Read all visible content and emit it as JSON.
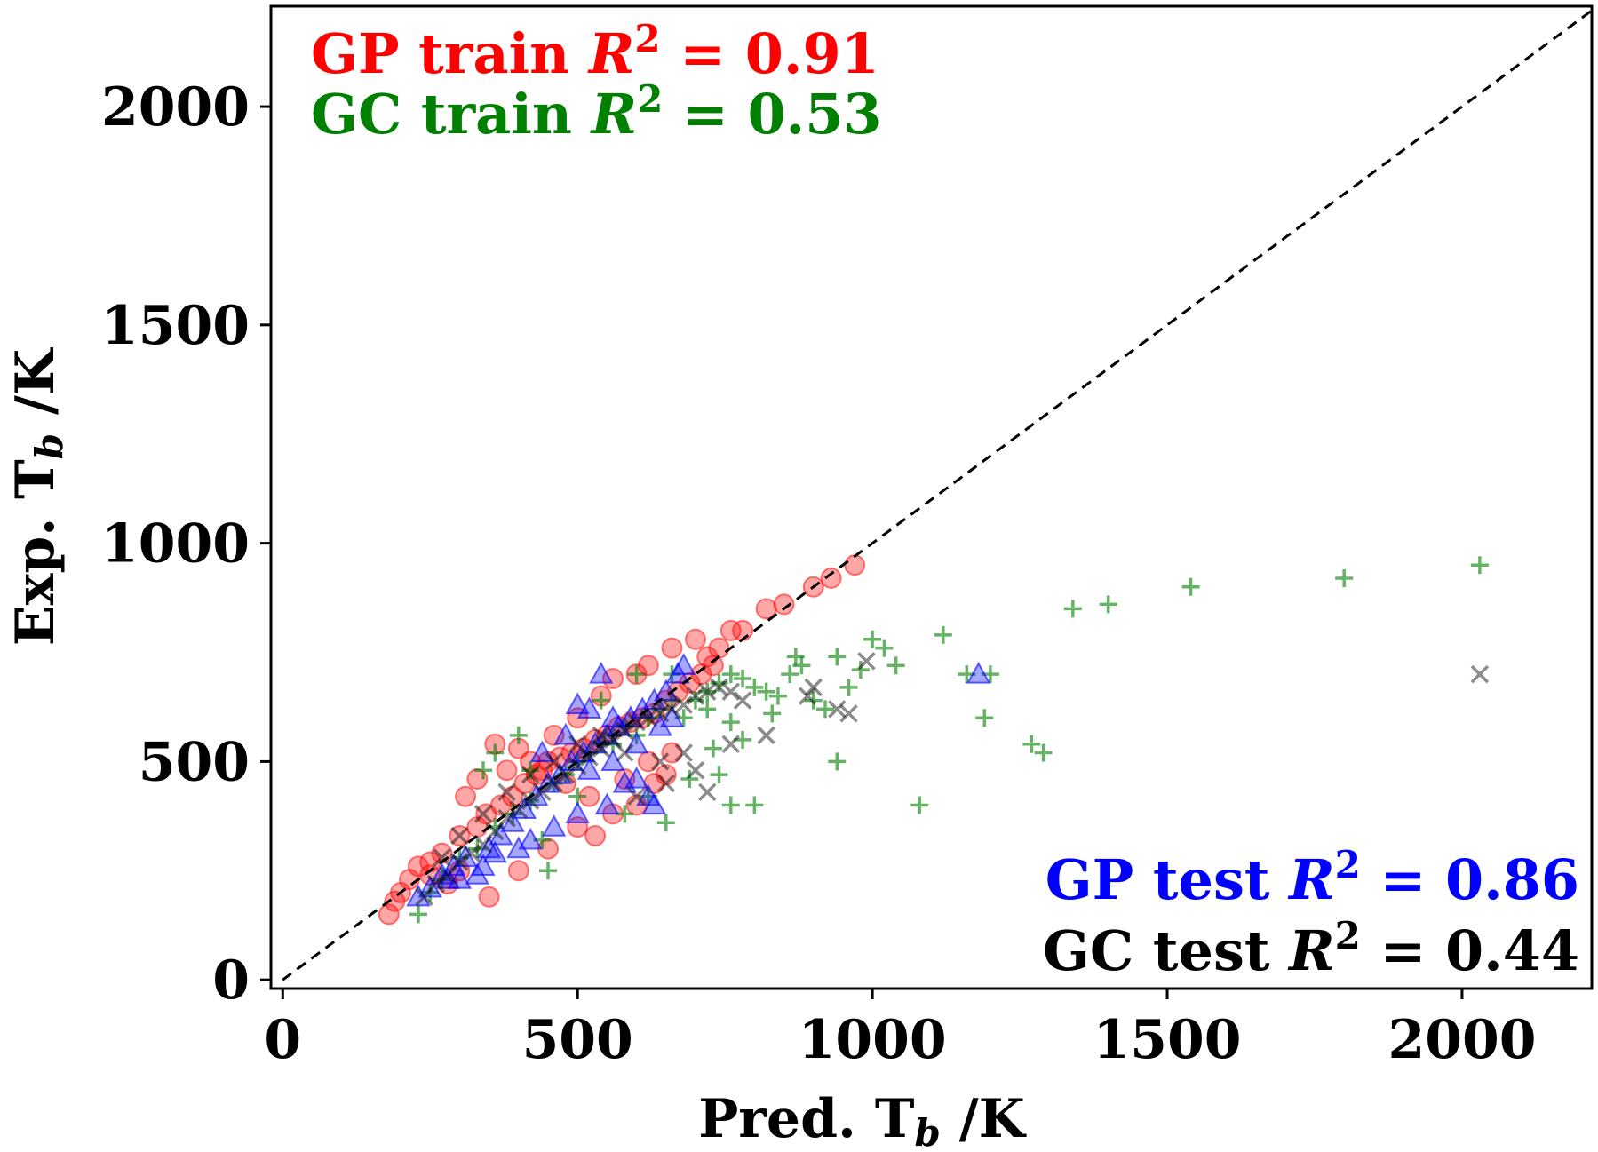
{
  "chart_data": {
    "type": "scatter",
    "xlabel": "Pred. T",
    "xlabel_sub": "b",
    "xlabel_unit": " /K",
    "ylabel": "Exp. T",
    "ylabel_sub": "b",
    "ylabel_unit": " /K",
    "xlim": [
      -20,
      2220
    ],
    "ylim": [
      -20,
      2230
    ],
    "x_ticks": [
      "0",
      "500",
      "1000",
      "1500",
      "2000"
    ],
    "y_ticks": [
      "0",
      "500",
      "1000",
      "1500",
      "2000"
    ],
    "grid": false,
    "legend": "none",
    "annotations": [
      {
        "text": "GP train",
        "r2": "= 0.91",
        "color": "#ff0000",
        "position": "top-left"
      },
      {
        "text": "GC train",
        "r2": "= 0.53",
        "color": "#008000",
        "position": "top-left"
      },
      {
        "text": "GP test",
        "r2": "= 0.86",
        "color": "#0000ff",
        "position": "bottom-right"
      },
      {
        "text": "GC test",
        "r2": "= 0.44",
        "color": "#000000",
        "position": "bottom-right"
      }
    ],
    "r2_label": "R",
    "r2_sup": "2",
    "reference_line": {
      "from": [
        0,
        0
      ],
      "to": [
        2220,
        2220
      ],
      "style": "dashed",
      "color": "#000000"
    },
    "series": [
      {
        "key": "gp_train",
        "marker": "circle",
        "color": "#ff0000",
        "points": [
          [
            180,
            150
          ],
          [
            190,
            180
          ],
          [
            200,
            200
          ],
          [
            215,
            230
          ],
          [
            230,
            260
          ],
          [
            250,
            270
          ],
          [
            270,
            290
          ],
          [
            300,
            330
          ],
          [
            330,
            350
          ],
          [
            345,
            380
          ],
          [
            370,
            400
          ],
          [
            390,
            420
          ],
          [
            410,
            450
          ],
          [
            430,
            470
          ],
          [
            450,
            500
          ],
          [
            470,
            510
          ],
          [
            490,
            520
          ],
          [
            510,
            530
          ],
          [
            530,
            550
          ],
          [
            550,
            560
          ],
          [
            570,
            580
          ],
          [
            590,
            590
          ],
          [
            610,
            600
          ],
          [
            630,
            610
          ],
          [
            650,
            640
          ],
          [
            670,
            660
          ],
          [
            690,
            680
          ],
          [
            710,
            700
          ],
          [
            730,
            720
          ],
          [
            740,
            760
          ],
          [
            760,
            800
          ],
          [
            780,
            800
          ],
          [
            820,
            850
          ],
          [
            850,
            860
          ],
          [
            900,
            900
          ],
          [
            930,
            920
          ],
          [
            970,
            950
          ],
          [
            350,
            190
          ],
          [
            400,
            250
          ],
          [
            450,
            300
          ],
          [
            500,
            350
          ],
          [
            530,
            330
          ],
          [
            560,
            380
          ],
          [
            600,
            400
          ],
          [
            630,
            450
          ],
          [
            650,
            470
          ],
          [
            300,
            250
          ],
          [
            280,
            220
          ],
          [
            250,
            240
          ],
          [
            360,
            540
          ],
          [
            400,
            530
          ],
          [
            460,
            560
          ],
          [
            500,
            600
          ],
          [
            540,
            650
          ],
          [
            560,
            690
          ],
          [
            600,
            700
          ],
          [
            620,
            720
          ],
          [
            660,
            760
          ],
          [
            700,
            780
          ],
          [
            720,
            740
          ],
          [
            330,
            460
          ],
          [
            310,
            420
          ],
          [
            380,
            480
          ],
          [
            420,
            500
          ],
          [
            440,
            480
          ],
          [
            480,
            450
          ],
          [
            520,
            420
          ],
          [
            580,
            460
          ],
          [
            620,
            500
          ],
          [
            660,
            520
          ]
        ]
      },
      {
        "key": "gc_train",
        "marker": "plus",
        "color": "#008000",
        "points": [
          [
            230,
            150
          ],
          [
            250,
            200
          ],
          [
            270,
            230
          ],
          [
            300,
            280
          ],
          [
            330,
            300
          ],
          [
            360,
            350
          ],
          [
            390,
            380
          ],
          [
            420,
            410
          ],
          [
            450,
            250
          ],
          [
            460,
            450
          ],
          [
            480,
            470
          ],
          [
            500,
            500
          ],
          [
            520,
            520
          ],
          [
            540,
            540
          ],
          [
            560,
            560
          ],
          [
            580,
            580
          ],
          [
            600,
            560
          ],
          [
            620,
            600
          ],
          [
            640,
            620
          ],
          [
            660,
            640
          ],
          [
            680,
            600
          ],
          [
            700,
            640
          ],
          [
            720,
            660
          ],
          [
            740,
            680
          ],
          [
            760,
            700
          ],
          [
            780,
            690
          ],
          [
            800,
            670
          ],
          [
            820,
            660
          ],
          [
            840,
            650
          ],
          [
            860,
            700
          ],
          [
            880,
            720
          ],
          [
            900,
            640
          ],
          [
            920,
            620
          ],
          [
            940,
            500
          ],
          [
            960,
            670
          ],
          [
            980,
            710
          ],
          [
            1000,
            780
          ],
          [
            1020,
            760
          ],
          [
            1040,
            720
          ],
          [
            1080,
            400
          ],
          [
            1120,
            790
          ],
          [
            1160,
            700
          ],
          [
            1190,
            600
          ],
          [
            1200,
            700
          ],
          [
            1270,
            540
          ],
          [
            1290,
            520
          ],
          [
            1340,
            850
          ],
          [
            1400,
            860
          ],
          [
            1540,
            900
          ],
          [
            1800,
            920
          ],
          [
            2030,
            950
          ],
          [
            690,
            460
          ],
          [
            740,
            470
          ],
          [
            800,
            400
          ],
          [
            760,
            400
          ],
          [
            650,
            360
          ],
          [
            620,
            420
          ],
          [
            580,
            380
          ],
          [
            560,
            540
          ],
          [
            500,
            420
          ],
          [
            440,
            320
          ],
          [
            400,
            560
          ],
          [
            360,
            520
          ],
          [
            340,
            480
          ],
          [
            420,
            480
          ],
          [
            540,
            640
          ],
          [
            600,
            700
          ],
          [
            660,
            700
          ],
          [
            720,
            620
          ],
          [
            760,
            590
          ],
          [
            830,
            610
          ],
          [
            870,
            740
          ],
          [
            730,
            530
          ],
          [
            780,
            550
          ],
          [
            940,
            740
          ]
        ]
      },
      {
        "key": "gp_test",
        "marker": "triangle",
        "color": "#0000ff",
        "points": [
          [
            230,
            190
          ],
          [
            250,
            210
          ],
          [
            270,
            240
          ],
          [
            290,
            260
          ],
          [
            310,
            280
          ],
          [
            330,
            240
          ],
          [
            350,
            300
          ],
          [
            370,
            330
          ],
          [
            390,
            360
          ],
          [
            410,
            390
          ],
          [
            430,
            420
          ],
          [
            450,
            450
          ],
          [
            470,
            470
          ],
          [
            490,
            500
          ],
          [
            510,
            520
          ],
          [
            530,
            540
          ],
          [
            550,
            560
          ],
          [
            570,
            580
          ],
          [
            590,
            600
          ],
          [
            610,
            620
          ],
          [
            630,
            640
          ],
          [
            650,
            660
          ],
          [
            670,
            700
          ],
          [
            680,
            720
          ],
          [
            500,
            630
          ],
          [
            520,
            620
          ],
          [
            540,
            700
          ],
          [
            560,
            600
          ],
          [
            600,
            460
          ],
          [
            630,
            400
          ],
          [
            620,
            420
          ],
          [
            580,
            450
          ],
          [
            550,
            400
          ],
          [
            500,
            380
          ],
          [
            460,
            350
          ],
          [
            420,
            320
          ],
          [
            400,
            300
          ],
          [
            360,
            290
          ],
          [
            340,
            260
          ],
          [
            300,
            230
          ],
          [
            280,
            230
          ],
          [
            1180,
            700
          ],
          [
            440,
            520
          ],
          [
            480,
            560
          ],
          [
            520,
            480
          ],
          [
            560,
            500
          ],
          [
            600,
            540
          ],
          [
            640,
            580
          ],
          [
            660,
            600
          ]
        ]
      },
      {
        "key": "gc_test",
        "marker": "x",
        "color": "#000000",
        "points": [
          [
            240,
            190
          ],
          [
            260,
            220
          ],
          [
            280,
            240
          ],
          [
            300,
            270
          ],
          [
            320,
            290
          ],
          [
            340,
            310
          ],
          [
            360,
            340
          ],
          [
            380,
            370
          ],
          [
            400,
            390
          ],
          [
            420,
            410
          ],
          [
            440,
            430
          ],
          [
            460,
            450
          ],
          [
            480,
            470
          ],
          [
            500,
            490
          ],
          [
            520,
            510
          ],
          [
            540,
            530
          ],
          [
            560,
            550
          ],
          [
            580,
            570
          ],
          [
            600,
            590
          ],
          [
            620,
            600
          ],
          [
            640,
            610
          ],
          [
            660,
            620
          ],
          [
            680,
            630
          ],
          [
            700,
            650
          ],
          [
            720,
            660
          ],
          [
            740,
            670
          ],
          [
            760,
            660
          ],
          [
            780,
            640
          ],
          [
            720,
            430
          ],
          [
            700,
            480
          ],
          [
            650,
            450
          ],
          [
            600,
            420
          ],
          [
            890,
            650
          ],
          [
            900,
            670
          ],
          [
            940,
            620
          ],
          [
            960,
            610
          ],
          [
            990,
            730
          ],
          [
            2030,
            700
          ],
          [
            820,
            560
          ],
          [
            760,
            540
          ],
          [
            680,
            520
          ],
          [
            640,
            500
          ],
          [
            580,
            520
          ],
          [
            540,
            560
          ],
          [
            500,
            540
          ],
          [
            460,
            500
          ],
          [
            420,
            470
          ],
          [
            380,
            430
          ],
          [
            340,
            380
          ],
          [
            300,
            330
          ],
          [
            270,
            280
          ]
        ]
      }
    ]
  }
}
